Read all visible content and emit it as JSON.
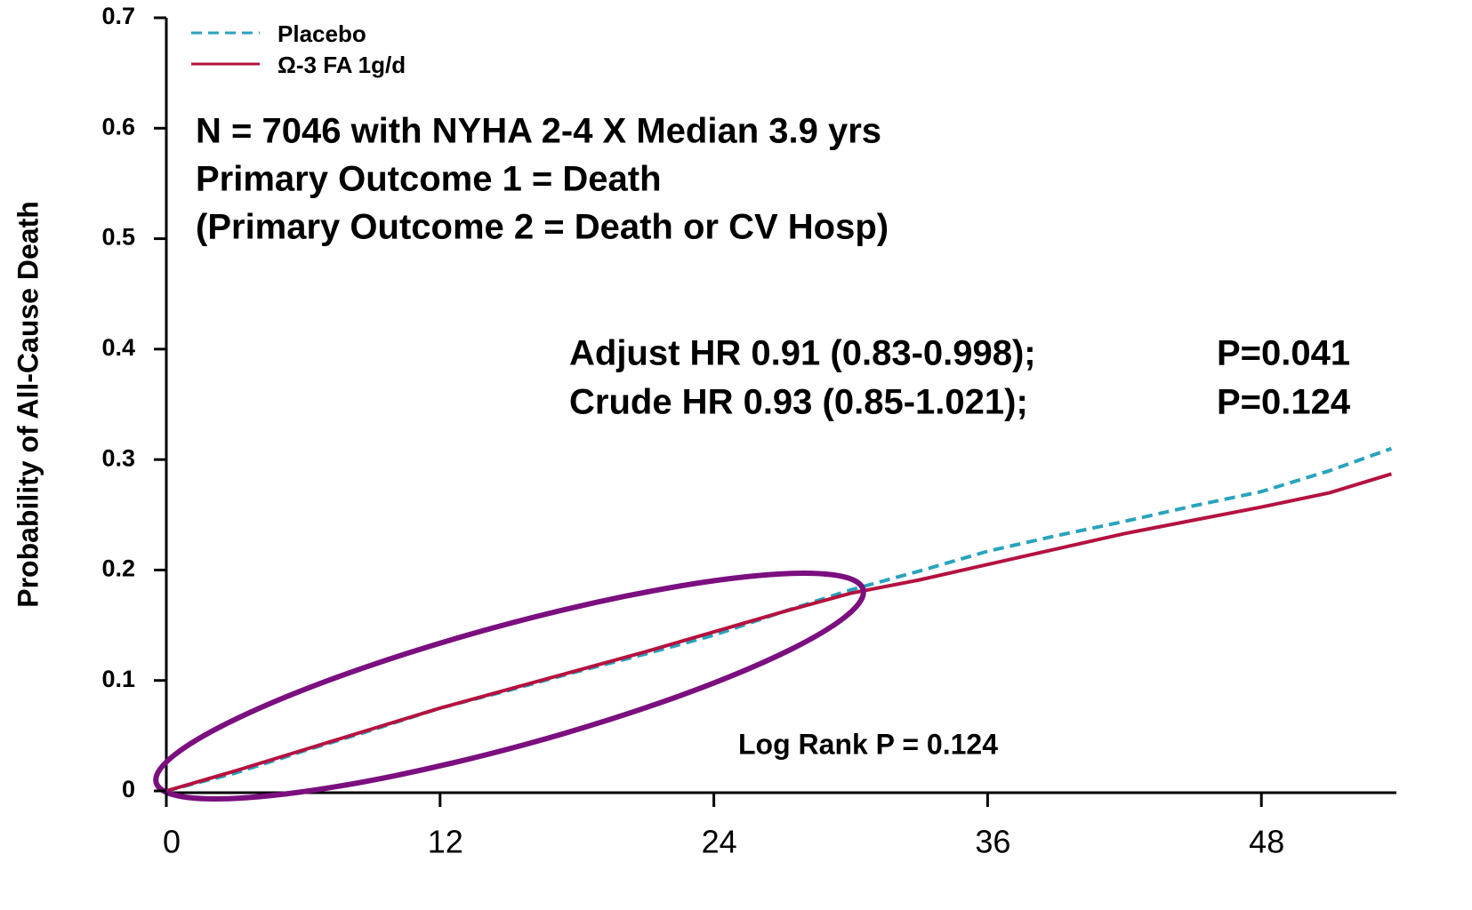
{
  "chart_data": {
    "type": "line",
    "y_label": "Probability of All-Cause Death",
    "annotations": [
      "N = 7046 with NYHA 2-4 X Median 3.9 yrs",
      "Primary Outcome 1 = Death",
      "(Primary Outcome 2 = Death or CV Hosp)",
      "Adjust HR 0.91 (0.83-0.998);",
      "P=0.041",
      "Crude HR 0.93 (0.85-1.021);",
      "P=0.124",
      "Log Rank P = 0.124"
    ],
    "x": [
      0,
      3,
      6,
      9,
      12,
      15,
      18,
      21,
      24,
      27,
      30,
      33,
      36,
      39,
      42,
      45,
      48,
      51,
      53.7
    ],
    "series": [
      {
        "name": "Placebo",
        "color": "#2aa3bd",
        "dashed": true,
        "values": [
          0,
          0.016,
          0.036,
          0.055,
          0.075,
          0.091,
          0.108,
          0.124,
          0.141,
          0.162,
          0.182,
          0.199,
          0.217,
          0.231,
          0.244,
          0.258,
          0.271,
          0.29,
          0.31
        ]
      },
      {
        "name": "Ω-3 FA 1g/d",
        "color": "#b5123f",
        "dashed": false,
        "values": [
          0,
          0.018,
          0.037,
          0.056,
          0.075,
          0.092,
          0.109,
          0.126,
          0.144,
          0.162,
          0.179,
          0.191,
          0.205,
          0.219,
          0.233,
          0.245,
          0.257,
          0.27,
          0.287
        ]
      }
    ],
    "xlim": [
      0,
      54
    ],
    "xticks": [
      0,
      12,
      24,
      36,
      48
    ],
    "ylim": [
      0,
      0.7
    ],
    "yticks": [
      0,
      0.1,
      0.2,
      0.3,
      0.4,
      0.5,
      0.6,
      0.7
    ]
  }
}
